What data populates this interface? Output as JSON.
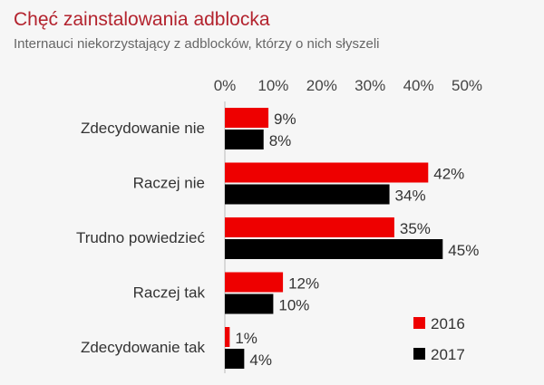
{
  "chart_data": {
    "type": "bar",
    "orientation": "horizontal",
    "title": "Chęć zainstalowania adblocka",
    "subtitle": "Internauci niekorzystający z adblocków, którzy o nich słyszeli",
    "categories": [
      "Zdecydowanie nie",
      "Raczej nie",
      "Trudno powiedzieć",
      "Raczej tak",
      "Zdecydowanie tak"
    ],
    "series": [
      {
        "name": "2016",
        "values": [
          9,
          42,
          35,
          12,
          1
        ],
        "color": "#ee0000"
      },
      {
        "name": "2017",
        "values": [
          8,
          34,
          45,
          10,
          4
        ],
        "color": "#000000"
      }
    ],
    "ticks": [
      "0%",
      "10%",
      "20%",
      "30%",
      "40%",
      "50%"
    ],
    "xlim": [
      0,
      50
    ],
    "unit": "%",
    "grid": false,
    "legend_position": "bottom-right"
  }
}
